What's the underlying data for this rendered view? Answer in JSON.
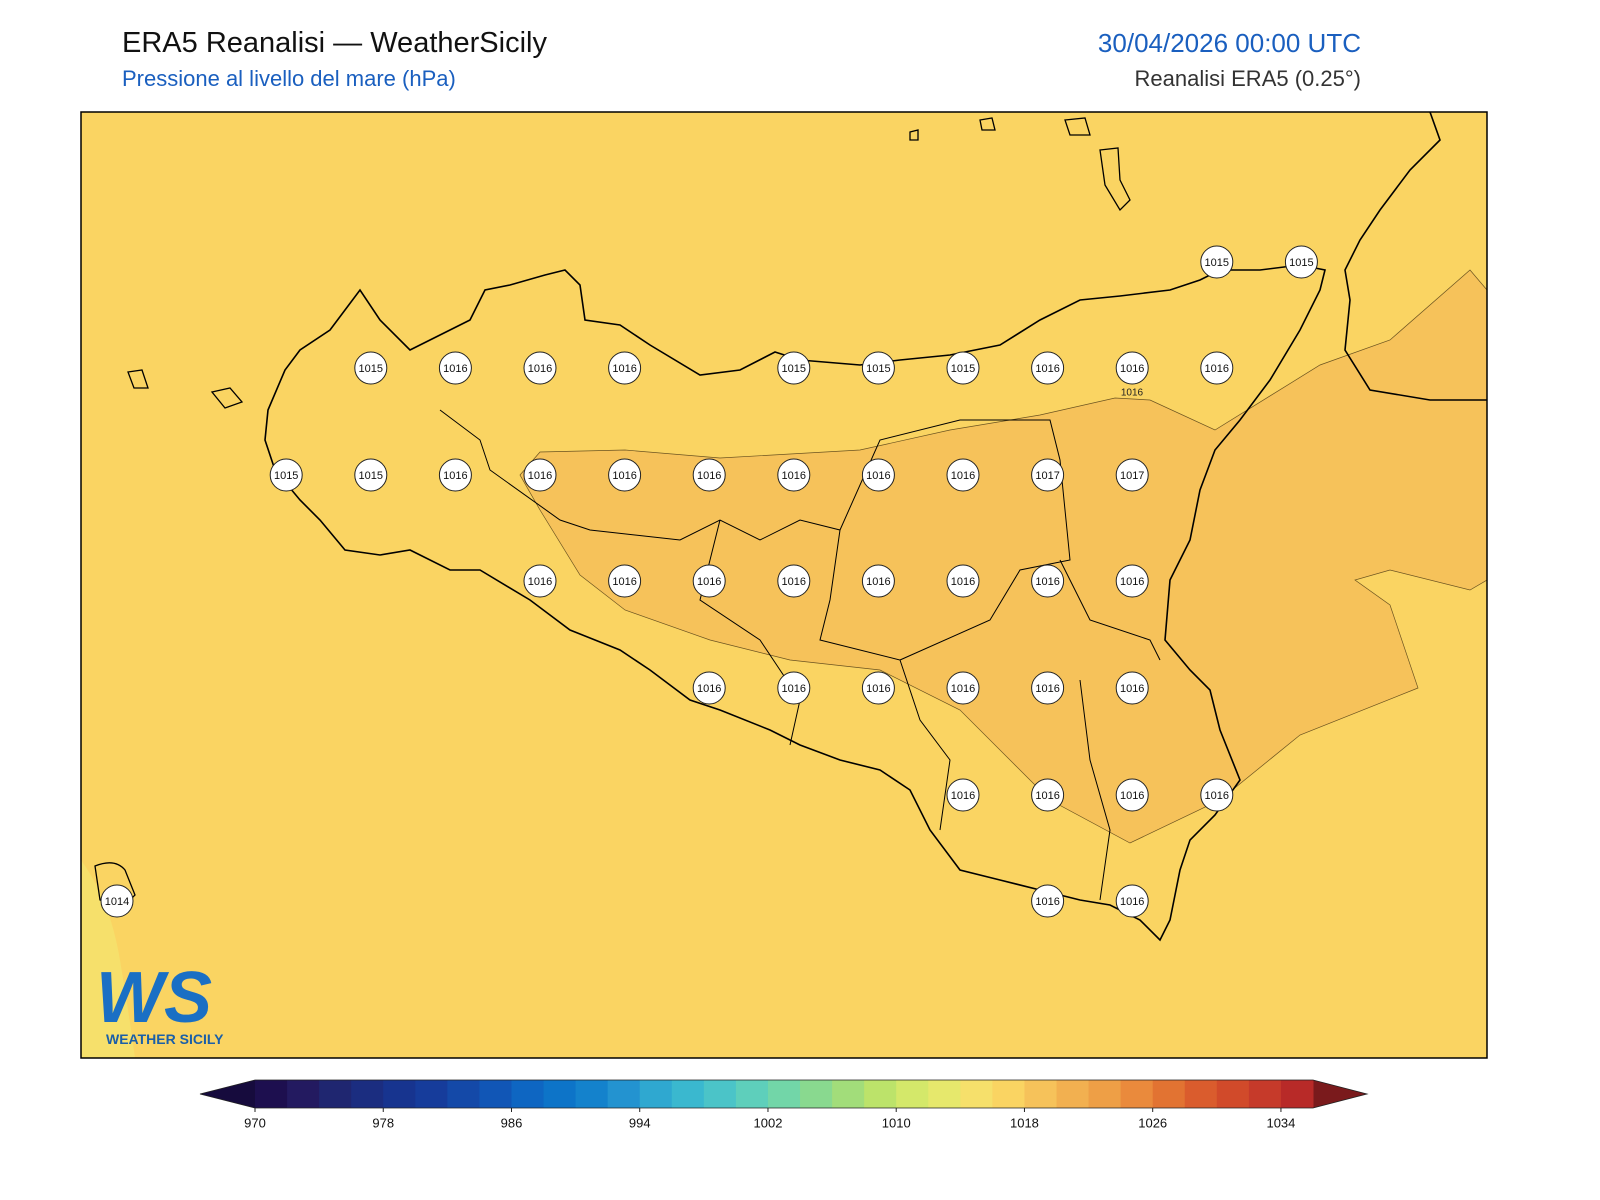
{
  "header": {
    "title": "ERA5 Reanalisi — WeatherSicily",
    "subtitle": "Pressione al livello del mare (hPa)",
    "datetime": "30/04/2026 00:00 UTC",
    "source": "Reanalisi ERA5 (0.25°)"
  },
  "stations": {
    "row0": [
      1015,
      1015
    ],
    "row1": [
      1015,
      1016,
      1016,
      1016,
      1015,
      1015,
      1015,
      1016,
      1016,
      1016
    ],
    "row2": [
      1015,
      1015,
      1016,
      1016,
      1016,
      1016,
      1016,
      1016,
      1016,
      1017,
      1017
    ],
    "row3": [
      1016,
      1016,
      1016,
      1016,
      1016,
      1016,
      1016,
      1016
    ],
    "row4": [
      1016,
      1016,
      1016,
      1016,
      1016,
      1016
    ],
    "row5": [
      1016,
      1016,
      1016,
      1016
    ],
    "row6": [
      1014,
      1016,
      1016
    ]
  },
  "contour_labels": [
    1016
  ],
  "logo": {
    "mark": "WS",
    "text": "WEATHER SICILY"
  },
  "colorbar": {
    "range": [
      970,
      1036
    ],
    "ticks": [
      970,
      978,
      986,
      994,
      1002,
      1010,
      1018,
      1026,
      1034
    ],
    "colors": [
      "#1d0f4f",
      "#231a60",
      "#1f2670",
      "#1b2d80",
      "#17348f",
      "#163c9b",
      "#1449a8",
      "#1156b6",
      "#0e66c2",
      "#0d74c8",
      "#1482cc",
      "#2393d0",
      "#2fa8d0",
      "#3ab8cf",
      "#4bc4c8",
      "#5ecfbb",
      "#72d6a8",
      "#89d98f",
      "#a2dd7a",
      "#bce36a",
      "#d4e86a",
      "#e6e86c",
      "#f6e06b",
      "#fad462",
      "#f6c25a",
      "#f2b050",
      "#ee9f46",
      "#ea8a3c",
      "#e27332",
      "#da5c2d",
      "#d14a2a",
      "#c63a2a",
      "#b82a28"
    ],
    "under_color": "#160b3d",
    "over_color": "#7a1a1c"
  }
}
